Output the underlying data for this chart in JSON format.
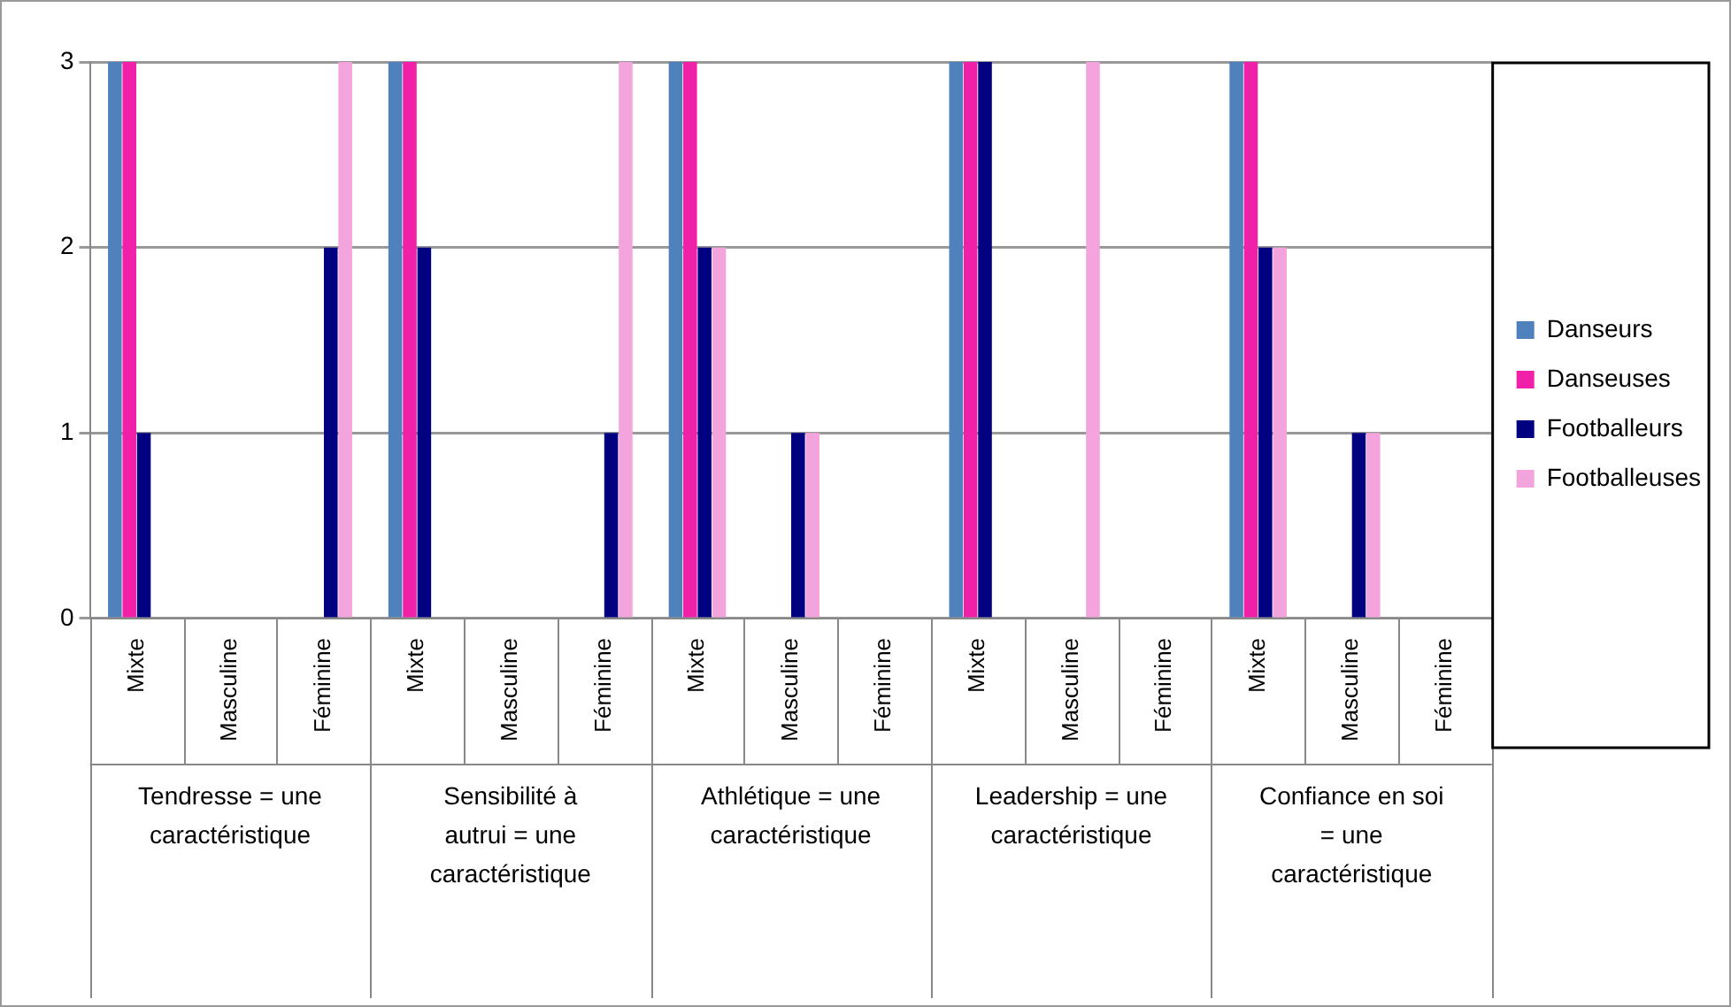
{
  "chart_data": {
    "type": "bar",
    "categories": [
      "Mixte",
      "Masculine",
      "Féminine",
      "Mixte",
      "Masculine",
      "Féminine",
      "Mixte",
      "Masculine",
      "Féminine",
      "Mixte",
      "Masculine",
      "Féminine",
      "Mixte",
      "Masculine",
      "Féminine"
    ],
    "series": [
      {
        "name": "Danseurs",
        "color": "#4f81bd",
        "values": [
          3,
          0,
          0,
          3,
          0,
          0,
          3,
          0,
          0,
          3,
          0,
          0,
          3,
          0,
          0
        ]
      },
      {
        "name": "Danseuses",
        "color": "#f020a8",
        "values": [
          3,
          0,
          0,
          3,
          0,
          0,
          3,
          0,
          0,
          3,
          0,
          0,
          3,
          0,
          0
        ]
      },
      {
        "name": "Footballeurs",
        "color": "#000080",
        "values": [
          1,
          0,
          2,
          2,
          0,
          1,
          2,
          1,
          0,
          3,
          0,
          0,
          2,
          1,
          0
        ]
      },
      {
        "name": "Footballeuses",
        "color": "#f4a4dc",
        "values": [
          0,
          0,
          3,
          0,
          0,
          3,
          2,
          1,
          0,
          0,
          3,
          0,
          2,
          1,
          0
        ]
      }
    ],
    "annotations": [
      "Tendresse = une caractéristique",
      "Sensibilité à autrui = une caractéristique",
      "Athlétique = une caractéristique",
      "Leadership = une caractéristique",
      "Confiance en soi = une caractéristique"
    ],
    "ylim": [
      0,
      3
    ],
    "yticks": [
      0,
      1,
      2,
      3
    ],
    "grid": "y",
    "legend": "right"
  }
}
